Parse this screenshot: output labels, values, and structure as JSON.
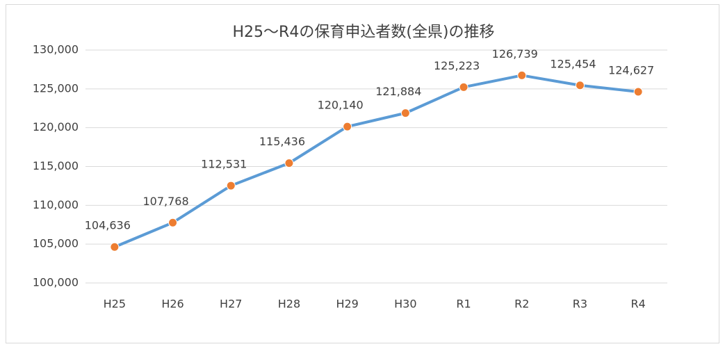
{
  "chart_data": {
    "type": "line",
    "title": "H25〜R4の保育申込者数(全県)の推移",
    "categories": [
      "H25",
      "H26",
      "H27",
      "H28",
      "H29",
      "H30",
      "R1",
      "R2",
      "R3",
      "R4"
    ],
    "series": [
      {
        "color": "#5b9bd5",
        "marker_color": "#ed7d31",
        "values": [
          104636,
          107768,
          112531,
          115436,
          120140,
          121884,
          125223,
          126739,
          125454,
          124627
        ],
        "value_labels": [
          "104,636",
          "107,768",
          "112,531",
          "115,436",
          "120,140",
          "121,884",
          "125,223",
          "126,739",
          "125,454",
          "124,627"
        ]
      }
    ],
    "ylim": [
      100000,
      130000
    ],
    "yticks": [
      {
        "value": 100000,
        "label": "100,000"
      },
      {
        "value": 105000,
        "label": "105,000"
      },
      {
        "value": 110000,
        "label": "110,000"
      },
      {
        "value": 115000,
        "label": "115,000"
      },
      {
        "value": 120000,
        "label": "120,000"
      },
      {
        "value": 125000,
        "label": "125,000"
      },
      {
        "value": 130000,
        "label": "130,000"
      }
    ],
    "grid": true
  }
}
